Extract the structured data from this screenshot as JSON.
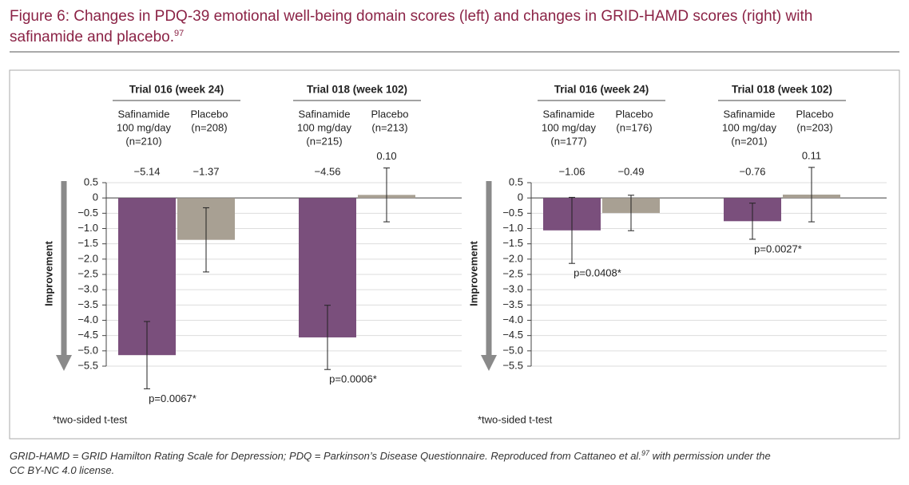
{
  "title": "Figure 6: Changes in PDQ-39 emotional well-being domain scores (left) and changes in GRID-HAMD scores (right) with safinamide and placebo.",
  "title_ref": "97",
  "caption": [
    "GRID-HAMD = GRID Hamilton Rating Scale for Depression; PDQ = Parkinson’s Disease Questionnaire. Reproduced from Cattaneo et al.",
    "97",
    " with permission under the CC BY-NC 4.0 license."
  ],
  "chart_data": [
    {
      "type": "bar",
      "ylabel": "Improvement",
      "footnote": "*two-sided t-test",
      "categories": [
        "Trial 016 (week 24)",
        "Trial 018 (week 102)"
      ],
      "bar_labels": [
        [
          [
            "Safinamide",
            "100 mg/day",
            "(n=210)"
          ],
          [
            "Placebo",
            "(n=208)"
          ]
        ],
        [
          [
            "Safinamide",
            "100 mg/day",
            "(n=215)"
          ],
          [
            "Placebo",
            "(n=213)"
          ]
        ]
      ],
      "p_values": [
        "p=0.0067*",
        "p=0.0006*"
      ],
      "series": [
        {
          "color": "#7a4f7c",
          "values": [
            -5.14,
            -4.56
          ],
          "value_labels": [
            "−5.14",
            "−4.56"
          ],
          "errors": [
            1.1,
            1.05
          ]
        },
        {
          "color": "#a8a093",
          "values": [
            -1.37,
            0.1
          ],
          "value_labels": [
            "−1.37",
            "0.10"
          ],
          "errors": [
            1.05,
            0.88
          ]
        }
      ],
      "ylim": [
        -5.5,
        0.5
      ],
      "yticks": [
        0.5,
        0,
        {
          "value": -0.5,
          "label": "−0.5"
        },
        {
          "value": -1,
          "label": "−1.0"
        },
        {
          "value": -1.5,
          "label": "−1.5"
        },
        {
          "value": -2,
          "label": "−2.0"
        },
        {
          "value": -2.5,
          "label": "−2.5"
        },
        {
          "value": -3,
          "label": "−3.0"
        },
        {
          "value": -3.5,
          "label": "−3.5"
        },
        {
          "value": -4,
          "label": "−4.0"
        },
        {
          "value": -4.5,
          "label": "−4.5"
        },
        {
          "value": -5,
          "label": "−5.0"
        },
        {
          "value": -5.5,
          "label": "−5.5"
        }
      ],
      "grid": true
    },
    {
      "type": "bar",
      "ylabel": "Improvement",
      "footnote": "*two-sided t-test",
      "categories": [
        "Trial 016 (week 24)",
        "Trial 018 (week 102)"
      ],
      "bar_labels": [
        [
          [
            "Safinamide",
            "100 mg/day",
            "(n=177)"
          ],
          [
            "Placebo",
            "(n=176)"
          ]
        ],
        [
          [
            "Safinamide",
            "100 mg/day",
            "(n=201)"
          ],
          [
            "Placebo",
            "(n=203)"
          ]
        ]
      ],
      "p_values": [
        "p=0.0408*",
        "p=0.0027*"
      ],
      "series": [
        {
          "color": "#7a4f7c",
          "values": [
            -1.06,
            -0.76
          ],
          "value_labels": [
            "−1.06",
            "−0.76"
          ],
          "errors": [
            1.08,
            0.59
          ]
        },
        {
          "color": "#a8a093",
          "values": [
            -0.49,
            0.11
          ],
          "value_labels": [
            "−0.49",
            "0.11"
          ],
          "errors": [
            0.58,
            0.89
          ]
        }
      ],
      "ylim": [
        -5.5,
        0.5
      ],
      "yticks": [
        0.5,
        0,
        {
          "value": -0.5,
          "label": "−0.5"
        },
        {
          "value": -1,
          "label": "−1.0"
        },
        {
          "value": -1.5,
          "label": "−1.5"
        },
        {
          "value": -2,
          "label": "−2.0"
        },
        {
          "value": -2.5,
          "label": "−2.5"
        },
        {
          "value": -3,
          "label": "−3.0"
        },
        {
          "value": -3.5,
          "label": "−3.5"
        },
        {
          "value": -4,
          "label": "−4.0"
        },
        {
          "value": -4.5,
          "label": "−4.5"
        },
        {
          "value": -5,
          "label": "−5.0"
        },
        {
          "value": -5.5,
          "label": "−5.5"
        }
      ],
      "grid": true
    }
  ]
}
